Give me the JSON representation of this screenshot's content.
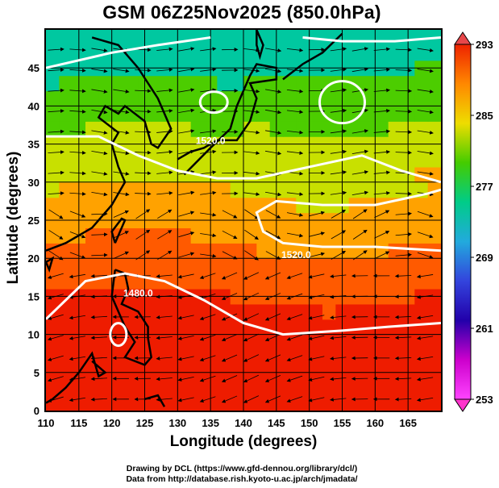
{
  "title": "GSM 06Z25Nov2025 (850.0hPa)",
  "x_axis_label": "Longitude (degrees)",
  "y_axis_label": "Latitude  (degrees)",
  "credit_line_1": "Drawing by DCL (https://www.gfd-dennou.org/library/dcl/)",
  "credit_line_2": "Data from http://database.rish.kyoto-u.ac.jp/arch/jmadata/",
  "map": {
    "lon_range": [
      110,
      170
    ],
    "lat_range": [
      0,
      50
    ],
    "lon_ticks": [
      "110",
      "115",
      "120",
      "125",
      "130",
      "135",
      "140",
      "145",
      "150",
      "155",
      "160",
      "165"
    ],
    "lat_ticks": [
      "0",
      "5",
      "10",
      "15",
      "20",
      "25",
      "30",
      "35",
      "40",
      "45"
    ],
    "contour_labels": [
      {
        "text": "1520.0",
        "lon": 135,
        "lat": 35
      },
      {
        "text": "1520.0",
        "lon": 148,
        "lat": 20
      },
      {
        "text": "1480.0",
        "lon": 124,
        "lat": 15
      }
    ]
  },
  "colorbar": {
    "labels": [
      "293",
      "285",
      "277",
      "269",
      "261",
      "253"
    ],
    "min": 253,
    "max": 293,
    "colors": [
      "#ee2200",
      "#ff8800",
      "#eedd00",
      "#44cc00",
      "#00cc88",
      "#22aadd",
      "#3344dd",
      "#2200aa",
      "#cc00cc",
      "#ff44ff"
    ]
  }
}
